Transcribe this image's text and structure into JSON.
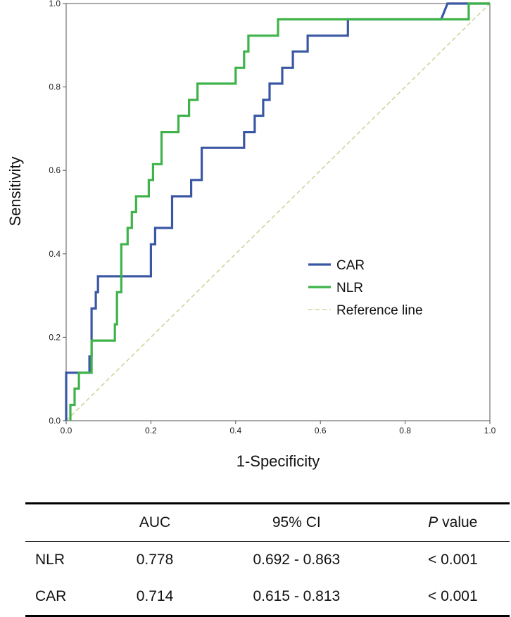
{
  "chart_data": {
    "type": "line",
    "title": "",
    "xlabel": "1-Specificity",
    "ylabel": "Sensitivity",
    "xlim": [
      0,
      1
    ],
    "ylim": [
      0,
      1
    ],
    "xticks": [
      "0.0",
      "0.2",
      "0.4",
      "0.6",
      "0.8",
      "1.0"
    ],
    "yticks": [
      "0.0",
      "0.2",
      "0.4",
      "0.6",
      "0.8",
      "1.0"
    ],
    "grid": false,
    "legend_position": "center-right",
    "series": [
      {
        "name": "CAR",
        "color": "#3a57a4",
        "points": [
          [
            0,
            0
          ],
          [
            0,
            0.115
          ],
          [
            0.055,
            0.115
          ],
          [
            0.055,
            0.154
          ],
          [
            0.06,
            0.154
          ],
          [
            0.06,
            0.269
          ],
          [
            0.07,
            0.269
          ],
          [
            0.07,
            0.308
          ],
          [
            0.075,
            0.308
          ],
          [
            0.075,
            0.346
          ],
          [
            0.2,
            0.346
          ],
          [
            0.2,
            0.423
          ],
          [
            0.21,
            0.423
          ],
          [
            0.21,
            0.462
          ],
          [
            0.25,
            0.462
          ],
          [
            0.25,
            0.538
          ],
          [
            0.295,
            0.538
          ],
          [
            0.295,
            0.577
          ],
          [
            0.32,
            0.577
          ],
          [
            0.32,
            0.654
          ],
          [
            0.42,
            0.654
          ],
          [
            0.42,
            0.692
          ],
          [
            0.445,
            0.692
          ],
          [
            0.445,
            0.731
          ],
          [
            0.465,
            0.731
          ],
          [
            0.465,
            0.769
          ],
          [
            0.48,
            0.769
          ],
          [
            0.48,
            0.808
          ],
          [
            0.51,
            0.808
          ],
          [
            0.51,
            0.846
          ],
          [
            0.535,
            0.846
          ],
          [
            0.535,
            0.885
          ],
          [
            0.57,
            0.885
          ],
          [
            0.57,
            0.923
          ],
          [
            0.665,
            0.923
          ],
          [
            0.665,
            0.962
          ],
          [
            0.885,
            0.962
          ],
          [
            0.9,
            1.0
          ],
          [
            1.0,
            1.0
          ]
        ]
      },
      {
        "name": "NLR",
        "color": "#3fb34a",
        "points": [
          [
            0.01,
            0
          ],
          [
            0.01,
            0.038
          ],
          [
            0.02,
            0.038
          ],
          [
            0.02,
            0.077
          ],
          [
            0.03,
            0.077
          ],
          [
            0.03,
            0.115
          ],
          [
            0.06,
            0.115
          ],
          [
            0.06,
            0.192
          ],
          [
            0.115,
            0.192
          ],
          [
            0.115,
            0.231
          ],
          [
            0.12,
            0.231
          ],
          [
            0.12,
            0.308
          ],
          [
            0.13,
            0.308
          ],
          [
            0.13,
            0.423
          ],
          [
            0.145,
            0.423
          ],
          [
            0.145,
            0.462
          ],
          [
            0.155,
            0.462
          ],
          [
            0.155,
            0.5
          ],
          [
            0.165,
            0.5
          ],
          [
            0.165,
            0.538
          ],
          [
            0.195,
            0.538
          ],
          [
            0.195,
            0.577
          ],
          [
            0.205,
            0.577
          ],
          [
            0.205,
            0.615
          ],
          [
            0.225,
            0.615
          ],
          [
            0.225,
            0.692
          ],
          [
            0.265,
            0.692
          ],
          [
            0.265,
            0.731
          ],
          [
            0.29,
            0.731
          ],
          [
            0.29,
            0.769
          ],
          [
            0.31,
            0.769
          ],
          [
            0.31,
            0.808
          ],
          [
            0.4,
            0.808
          ],
          [
            0.4,
            0.846
          ],
          [
            0.42,
            0.846
          ],
          [
            0.42,
            0.885
          ],
          [
            0.43,
            0.885
          ],
          [
            0.43,
            0.923
          ],
          [
            0.5,
            0.923
          ],
          [
            0.5,
            0.962
          ],
          [
            0.95,
            0.962
          ],
          [
            0.95,
            1.0
          ],
          [
            1.0,
            1.0
          ]
        ]
      },
      {
        "name": "Reference line",
        "color": "#c8d89a",
        "dashed": true,
        "points": [
          [
            0,
            0
          ],
          [
            1,
            1
          ]
        ]
      }
    ]
  },
  "table": {
    "headers": [
      "",
      "AUC",
      "95% CI",
      "value"
    ],
    "p_label": "P",
    "rows": [
      [
        "NLR",
        "0.778",
        "0.692 - 0.863",
        "< 0.001"
      ],
      [
        "CAR",
        "0.714",
        "0.615 - 0.813",
        "< 0.001"
      ]
    ]
  }
}
